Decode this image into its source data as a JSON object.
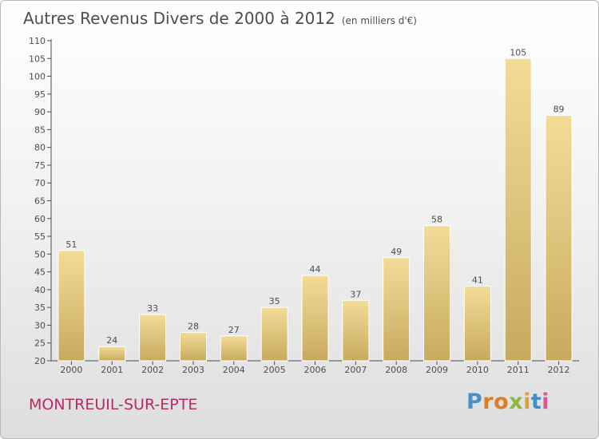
{
  "header": {
    "title": "Autres Revenus Divers de 2000 à 2012",
    "subtitle": "(en milliers d'€)"
  },
  "footer": {
    "commune": "MONTREUIL-SUR-EPTE",
    "logo_text": "Proxiti"
  },
  "colors": {
    "bar_top": "#f3dc98",
    "bar_bottom": "#c8aa5e",
    "commune": "#b52b65",
    "axis": "#4d4d4d"
  },
  "chart_data": {
    "type": "bar",
    "title": "Autres Revenus Divers de 2000 à 2012",
    "subtitle": "(en milliers d'€)",
    "categories": [
      "2000",
      "2001",
      "2002",
      "2003",
      "2004",
      "2005",
      "2006",
      "2007",
      "2008",
      "2009",
      "2010",
      "2011",
      "2012"
    ],
    "values": [
      51,
      24,
      33,
      28,
      27,
      35,
      44,
      37,
      49,
      58,
      41,
      105,
      89
    ],
    "ylim": [
      20,
      110
    ],
    "yticks": [
      20,
      25,
      30,
      35,
      40,
      45,
      50,
      55,
      60,
      65,
      70,
      75,
      80,
      85,
      90,
      95,
      100,
      105,
      110
    ],
    "xlabel": "",
    "ylabel": "",
    "grid": false,
    "data_labels": true
  }
}
